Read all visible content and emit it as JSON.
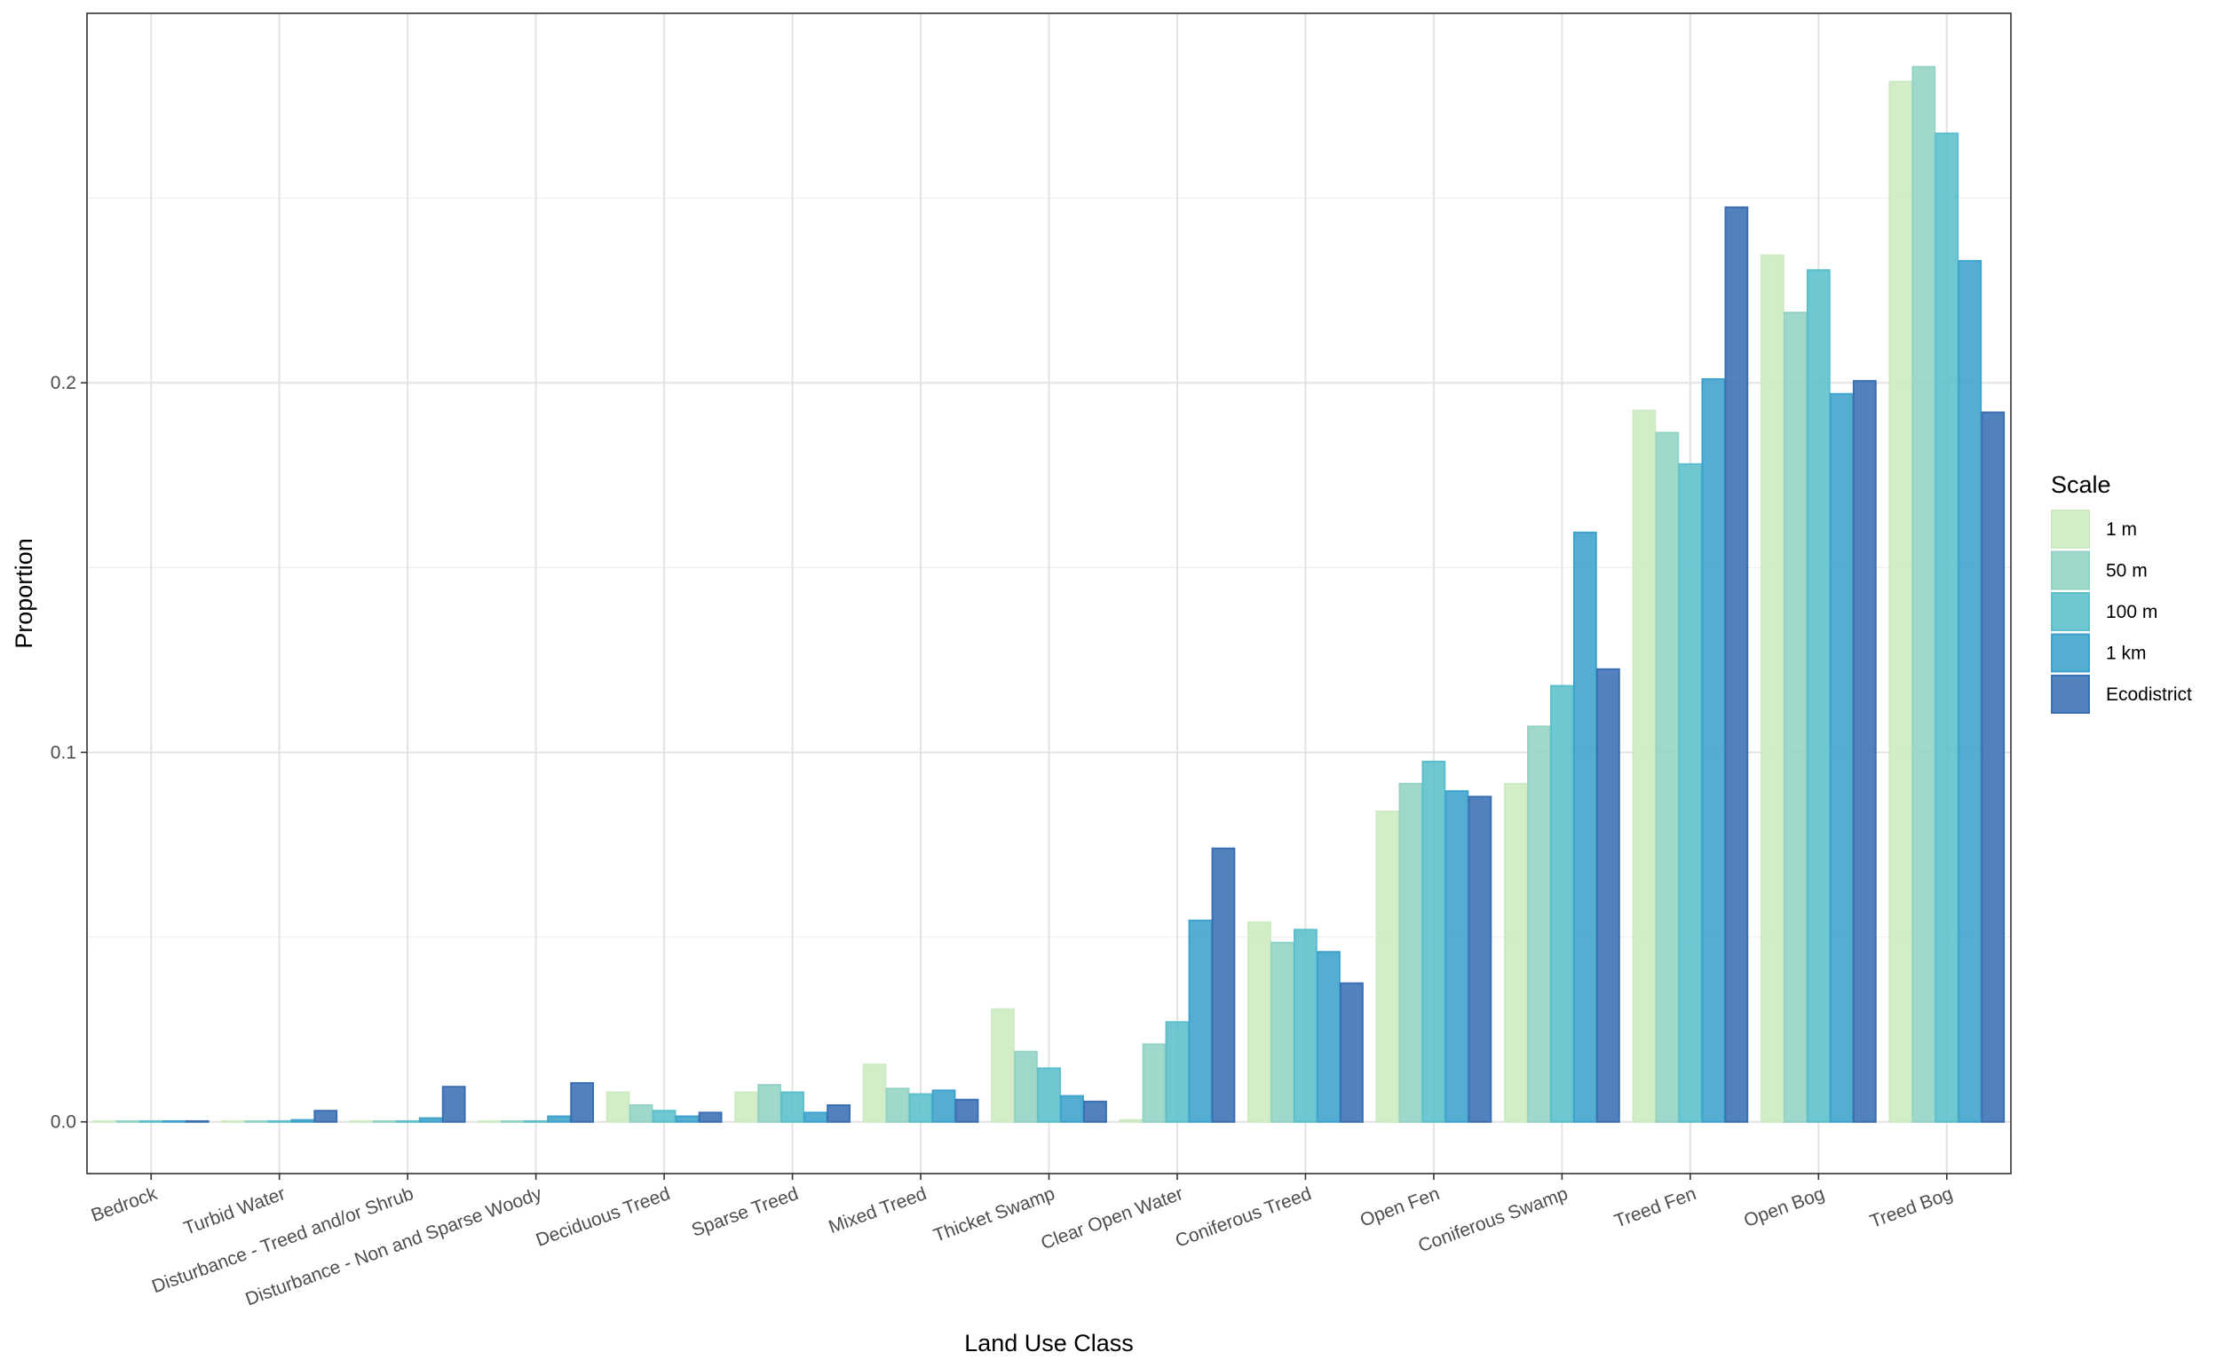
{
  "chart_data": {
    "type": "bar",
    "xlabel": "Land Use Class",
    "ylabel": "Proportion",
    "ylim": [
      -0.014,
      0.3
    ],
    "yticks": [
      0.0,
      0.1,
      0.2
    ],
    "ytick_labels": [
      "0.0",
      "0.1",
      "0.2"
    ],
    "grid": true,
    "legend_position": "right",
    "legend_title": "Scale",
    "categories": [
      "Bedrock",
      "Turbid Water",
      "Disturbance - Treed and/or Shrub",
      "Disturbance - Non and Sparse Woody",
      "Deciduous Treed",
      "Sparse Treed",
      "Mixed Treed",
      "Thicket Swamp",
      "Clear Open Water",
      "Coniferous Treed",
      "Open Fen",
      "Coniferous Swamp",
      "Treed Fen",
      "Open Bog",
      "Treed Bog"
    ],
    "series": [
      {
        "name": "1 m",
        "color": "#cdebc2",
        "values": [
          0.0,
          0.0,
          0.0,
          0.0,
          0.008,
          0.008,
          0.0155,
          0.0305,
          0.0005,
          0.054,
          0.084,
          0.0915,
          0.1925,
          0.2345,
          0.2815
        ]
      },
      {
        "name": "50 m",
        "color": "#93d3c5",
        "values": [
          0.0,
          0.0,
          0.0,
          0.0,
          0.0045,
          0.01,
          0.009,
          0.019,
          0.021,
          0.0485,
          0.0915,
          0.107,
          0.1865,
          0.219,
          0.2855
        ]
      },
      {
        "name": "100 m",
        "color": "#5bbfcc",
        "values": [
          0.0,
          0.0,
          0.0,
          0.0,
          0.003,
          0.008,
          0.0075,
          0.0145,
          0.027,
          0.052,
          0.0975,
          0.118,
          0.178,
          0.2305,
          0.2675
        ]
      },
      {
        "name": "1 km",
        "color": "#3ea3cc",
        "values": [
          0.0,
          0.0005,
          0.001,
          0.0015,
          0.0015,
          0.0025,
          0.0085,
          0.007,
          0.0545,
          0.046,
          0.0895,
          0.1595,
          0.201,
          0.197,
          0.233
        ]
      },
      {
        "name": "Ecodistrict",
        "color": "#3b6fb4",
        "values": [
          0.0,
          0.003,
          0.0095,
          0.0105,
          0.0025,
          0.0045,
          0.006,
          0.0055,
          0.074,
          0.0375,
          0.088,
          0.1225,
          0.2475,
          0.2005,
          0.192
        ]
      }
    ]
  }
}
